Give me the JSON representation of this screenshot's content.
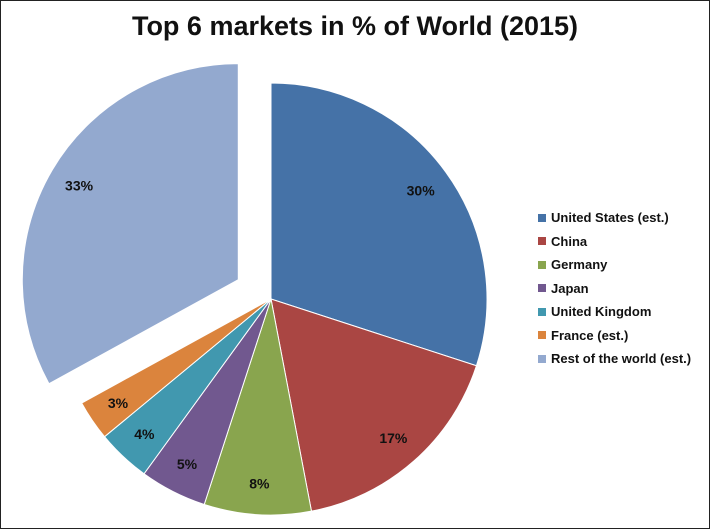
{
  "chart_data": {
    "type": "pie",
    "title": "Top 6 markets in % of World (2015)",
    "categories": [
      "United States (est.)",
      "China",
      "Germany",
      "Japan",
      "United Kingdom",
      "France (est.)",
      "Rest of the world (est.)"
    ],
    "values": [
      30,
      17,
      8,
      5,
      4,
      3,
      33
    ],
    "data_labels": [
      "30%",
      "17%",
      "8%",
      "5%",
      "4%",
      "3%",
      "33%"
    ],
    "colors": [
      "#4572A7",
      "#AA4643",
      "#89A54E",
      "#71588F",
      "#4198AF",
      "#DB843D",
      "#93A9CF"
    ],
    "exploded": [
      "Rest of the world (est.)"
    ],
    "legend_position": "right"
  }
}
